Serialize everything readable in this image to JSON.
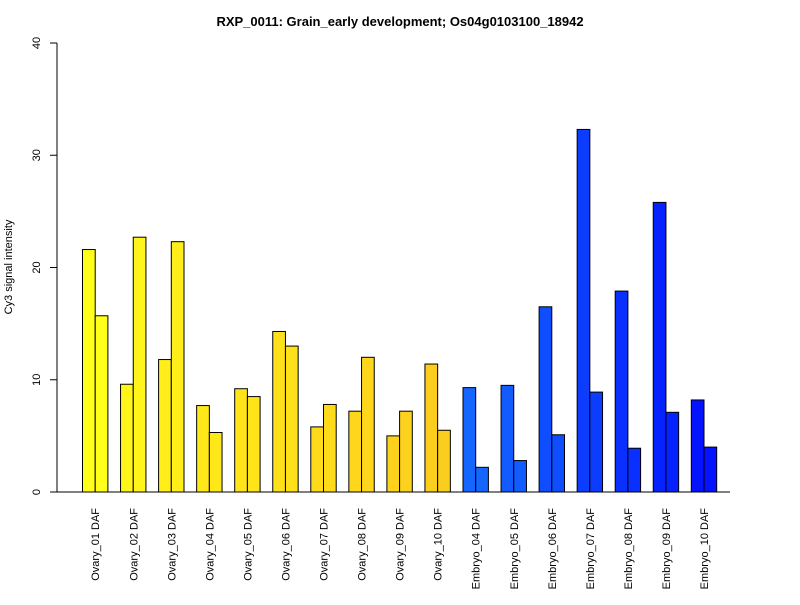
{
  "chart_data": {
    "type": "bar",
    "title": "RXP_0011: Grain_early development; Os04g0103100_18942",
    "ylabel": "Cy3 signal intensity",
    "xlabel": "",
    "ylim": [
      0,
      40
    ],
    "yticks": [
      0,
      10,
      20,
      30,
      40
    ],
    "grid": false,
    "categories": [
      "Ovary_01 DAF",
      "Ovary_02 DAF",
      "Ovary_03 DAF",
      "Ovary_04 DAF",
      "Ovary_05 DAF",
      "Ovary_06 DAF",
      "Ovary_07 DAF",
      "Ovary_08 DAF",
      "Ovary_09 DAF",
      "Ovary_10 DAF",
      "Embryo_04 DAF",
      "Embryo_05 DAF",
      "Embryo_06 DAF",
      "Embryo_07 DAF",
      "Embryo_08 DAF",
      "Embryo_09 DAF",
      "Embryo_10 DAF"
    ],
    "series": [
      {
        "values": [
          21.6,
          9.6,
          11.8,
          7.7,
          9.2,
          14.3,
          5.8,
          7.2,
          5.0,
          11.4,
          9.3,
          9.5,
          16.5,
          32.3,
          17.9,
          25.8,
          8.2
        ]
      },
      {
        "values": [
          15.7,
          22.7,
          22.3,
          5.3,
          8.5,
          13.0,
          7.8,
          12.0,
          7.2,
          5.5,
          2.2,
          2.8,
          5.1,
          8.9,
          3.9,
          7.1,
          4.0
        ]
      }
    ],
    "colors": [
      "#ffff19",
      "#fff51a",
      "#ffee1a",
      "#ffe81a",
      "#ffe41a",
      "#fee01b",
      "#fedb1a",
      "#fed61b",
      "#fdd21c",
      "#fbcd1d",
      "#1565ff",
      "#125bff",
      "#0f4eff",
      "#0c3dff",
      "#0a30ff",
      "#0622ff",
      "#0312ff"
    ]
  }
}
